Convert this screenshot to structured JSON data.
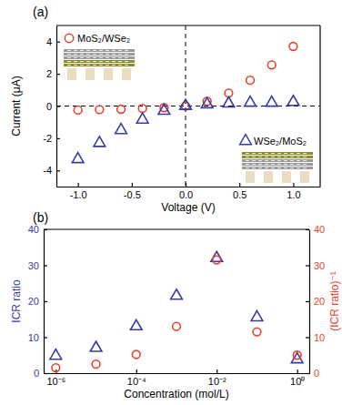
{
  "chart_data": [
    {
      "type": "scatter",
      "title": "(a)",
      "x_label": "Voltage (V)",
      "y_label": "Current (μA)",
      "x": [
        -1.0,
        -0.8,
        -0.6,
        -0.4,
        -0.2,
        0.0,
        0.2,
        0.4,
        0.6,
        0.8,
        1.0
      ],
      "xlim": [
        -1.2,
        1.25
      ],
      "xticks": [
        {
          "value": -1.0,
          "label": "-1.0"
        },
        {
          "value": -0.5,
          "label": "-0.5"
        },
        {
          "value": 0.0,
          "label": "0.0"
        },
        {
          "value": 0.5,
          "label": "0.5"
        },
        {
          "value": 1.0,
          "label": "1.0"
        }
      ],
      "ylim": [
        -5,
        5
      ],
      "yticks": [
        -4,
        -2,
        0,
        2,
        4
      ],
      "series": [
        {
          "name": "MoS₂/WSe₂",
          "color": "#e8402c",
          "marker": "circle",
          "values": [
            -0.25,
            -0.22,
            -0.2,
            -0.15,
            -0.1,
            0.0,
            0.3,
            0.8,
            1.6,
            2.55,
            3.7
          ]
        },
        {
          "name": "WSe₂/MoS₂",
          "color": "#3b3ba6",
          "marker": "triangle",
          "values": [
            -3.3,
            -2.3,
            -1.5,
            -0.85,
            -0.3,
            0.0,
            0.1,
            0.15,
            0.2,
            0.2,
            0.25
          ]
        }
      ]
    },
    {
      "type": "scatter",
      "title": "(b)",
      "x_label": "Concentration (mol/L)",
      "y_label": "ICR ratio",
      "y2_label": "(ICR ratio)⁻¹",
      "log": "x",
      "x": [
        1e-06,
        1e-05,
        0.0001,
        0.001,
        0.01,
        0.1,
        1
      ],
      "xlim": [
        5e-07,
        2
      ],
      "xticks": [
        {
          "value": 1e-06,
          "label": "10⁻⁶"
        },
        {
          "value": 0.0001,
          "label": "10⁻⁴"
        },
        {
          "value": 0.01,
          "label": "10⁻²"
        },
        {
          "value": 1,
          "label": "10⁰"
        }
      ],
      "ylim": [
        0,
        40
      ],
      "yticks": [
        0,
        10,
        20,
        30,
        40
      ],
      "y2lim": [
        0,
        40
      ],
      "y2ticks": [
        0,
        10,
        20,
        30,
        40
      ],
      "series": [
        {
          "color": "#3b3ba6",
          "marker": "triangle",
          "values": [
            4.8,
            7.0,
            13.0,
            21.5,
            32.0,
            15.5,
            3.8
          ]
        },
        {
          "color": "#e8402c",
          "marker": "circle",
          "axis": "y2",
          "values": [
            1.5,
            2.5,
            5.2,
            13.0,
            31.5,
            11.5,
            5.0
          ]
        }
      ]
    }
  ]
}
